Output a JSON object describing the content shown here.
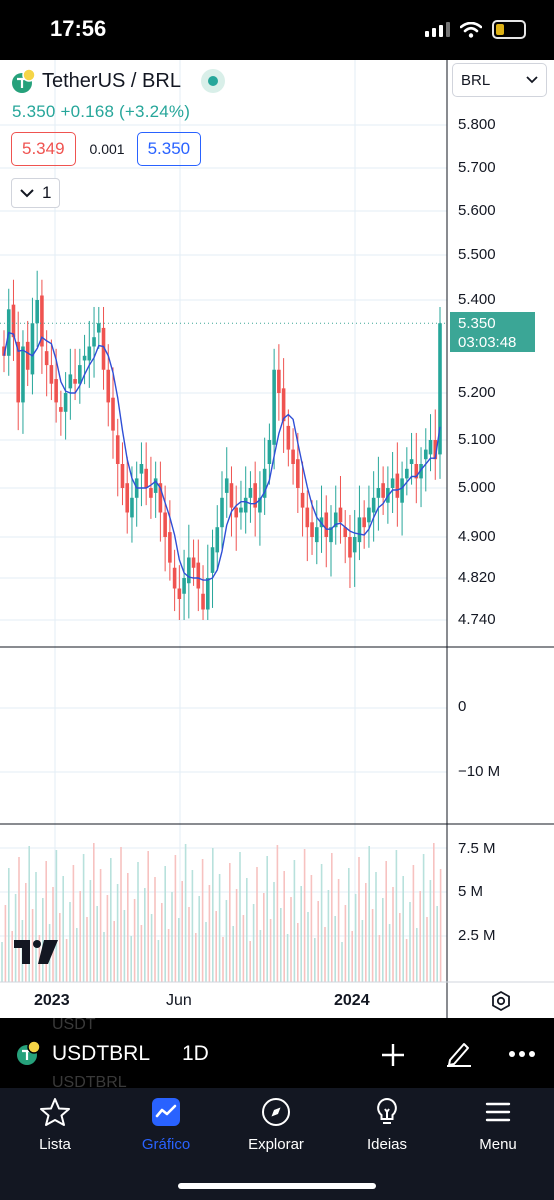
{
  "status_bar": {
    "time": "17:56"
  },
  "header": {
    "symbol_title": "TetherUS / BRL",
    "price_change": "5.350  +0.168 (+3.24%)",
    "bid": "5.349",
    "spread": "0.001",
    "ask": "5.350",
    "collapse_count": "1",
    "currency": "BRL"
  },
  "price_axis": {
    "labels": [
      "5.800",
      "5.700",
      "5.600",
      "5.500",
      "5.400",
      "5.200",
      "5.100",
      "5.000",
      "4.900",
      "4.820",
      "4.740"
    ],
    "current_price": "5.350",
    "countdown": "03:03:48"
  },
  "indicator_axis": {
    "labels": [
      "0",
      "−10 M"
    ]
  },
  "volume_axis": {
    "labels": [
      "7.5 M",
      "5 M",
      "2.5 M"
    ]
  },
  "date_axis": {
    "labels": [
      "2023",
      "Jun",
      "2024"
    ]
  },
  "toolbar": {
    "ghost_top": "USDT",
    "ghost_bottom": "USDTBRL",
    "symbol": "USDTBRL",
    "interval": "1D"
  },
  "tabs": [
    {
      "label": "Lista",
      "icon": "star-icon",
      "active": false
    },
    {
      "label": "Gráfico",
      "icon": "chart-icon",
      "active": true
    },
    {
      "label": "Explorar",
      "icon": "compass-icon",
      "active": false
    },
    {
      "label": "Ideias",
      "icon": "lightbulb-icon",
      "active": false
    },
    {
      "label": "Menu",
      "icon": "hamburger-icon",
      "active": false
    }
  ],
  "colors": {
    "up": "#26a69a",
    "down": "#ef5350",
    "ma_line": "#2f4fd6",
    "active_tab": "#2962ff",
    "price_tag": "#3ba696"
  },
  "chart_data": {
    "type": "candlestick",
    "title": "TetherUS / BRL",
    "interval": "1D",
    "y_range": [
      4.72,
      5.86
    ],
    "x_ticks": [
      "2023",
      "Jun",
      "2024"
    ],
    "current_price": 5.35,
    "series": [
      {
        "name": "USDTBRL",
        "closes": [
          5.28,
          5.38,
          5.32,
          5.18,
          5.3,
          5.25,
          5.35,
          5.4,
          5.3,
          5.26,
          5.22,
          5.18,
          5.16,
          5.2,
          5.24,
          5.22,
          5.26,
          5.28,
          5.3,
          5.32,
          5.35,
          5.25,
          5.18,
          5.12,
          5.05,
          5.0,
          4.95,
          4.98,
          5.02,
          5.05,
          5.0,
          4.98,
          5.02,
          4.95,
          4.9,
          4.85,
          4.8,
          4.78,
          4.82,
          4.86,
          4.84,
          4.8,
          4.76,
          4.82,
          4.88,
          4.92,
          4.98,
          5.02,
          4.96,
          4.94,
          4.96,
          4.98,
          5.0,
          4.96,
          4.98,
          5.04,
          5.1,
          5.25,
          5.2,
          5.14,
          5.08,
          5.05,
          5.0,
          4.96,
          4.92,
          4.9,
          4.92,
          4.94,
          4.9,
          4.92,
          4.95,
          4.93,
          4.9,
          4.86,
          4.9,
          4.94,
          4.92,
          4.96,
          4.98,
          5.0,
          4.98,
          5.0,
          5.02,
          4.98,
          5.02,
          5.04,
          5.06,
          5.02,
          5.05,
          5.08,
          5.1,
          5.06,
          5.35
        ]
      }
    ]
  }
}
